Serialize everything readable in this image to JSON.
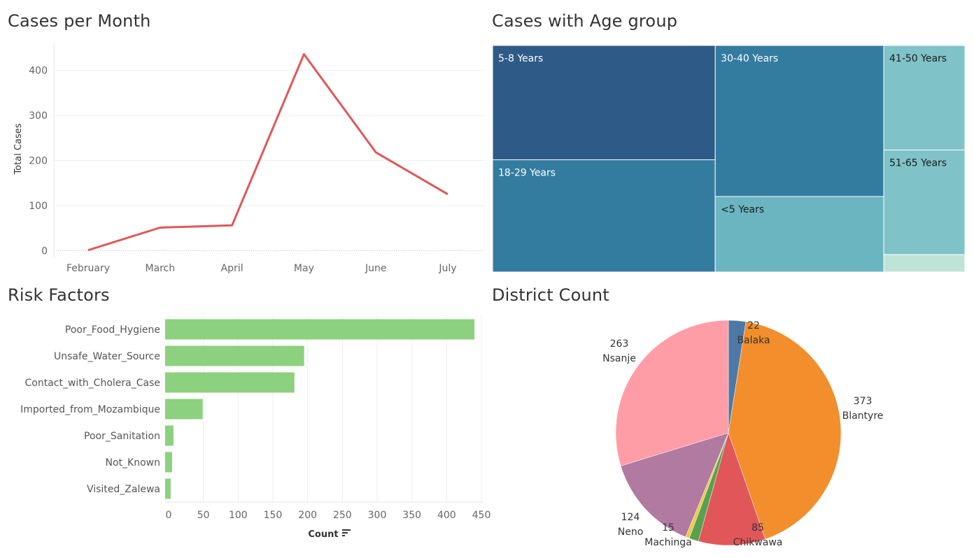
{
  "panels": {
    "line_title": "Cases per Month",
    "treemap_title": "Cases with Age group",
    "bar_title": "Risk Factors",
    "pie_title": "District Count"
  },
  "chart_data": [
    {
      "type": "line",
      "title": "Cases per Month",
      "xlabel": "",
      "ylabel": "Total Cases",
      "categories": [
        "February",
        "March",
        "April",
        "May",
        "June",
        "July"
      ],
      "values": [
        1,
        51,
        56,
        436,
        218,
        125
      ],
      "ylim": [
        -15,
        460
      ],
      "yticks": [
        0,
        100,
        200,
        300,
        400
      ],
      "color": "#E05759",
      "grid": true
    },
    {
      "type": "treemap",
      "title": "Cases with Age group",
      "labels": [
        "5-8 Years",
        "18-29 Years",
        "30-40 Years",
        "<5 Years",
        "41-50 Years",
        "51-65 Years",
        ""
      ],
      "values": [
        216,
        212,
        216,
        108,
        72,
        72,
        12
      ],
      "colors": [
        "#2E5A87",
        "#347BA0",
        "#347BA0",
        "#6BB5C1",
        "#7FC3C9",
        "#7FC3C9",
        "#BFE4D7"
      ],
      "label_colors": [
        "#ffffff",
        "#ffffff",
        "#ffffff",
        "#1a1a1a",
        "#1a1a1a",
        "#1a1a1a",
        "#1a1a1a"
      ]
    },
    {
      "type": "bar",
      "orientation": "horizontal",
      "title": "Risk Factors",
      "xlabel": "Count",
      "ylabel": "",
      "categories": [
        "Poor_Food_Hygiene",
        "Unsafe_Water_Source",
        "Contact_with_Cholera_Case",
        "Imported_from_Mozambique",
        "Poor_Sanitation",
        "Not_Known",
        "Visited_Zalewa"
      ],
      "values": [
        440,
        195,
        181,
        49,
        7,
        5,
        3
      ],
      "xlim": [
        -5,
        452
      ],
      "xticks": [
        0,
        50,
        100,
        150,
        200,
        250,
        300,
        350,
        400,
        450
      ],
      "color": "#8CD17D",
      "grid": true
    },
    {
      "type": "pie",
      "title": "District Count",
      "categories": [
        "Balaka",
        "Blantyre",
        "Chikwawa",
        "Machinga",
        "Neno",
        "Nsanje"
      ],
      "values": [
        22,
        373,
        85,
        15,
        124,
        263
      ],
      "extra_slices": [
        {
          "value": 12,
          "color": "#59A14F"
        },
        {
          "value": 5,
          "color": "#EDC948"
        }
      ],
      "colors": [
        "#4E79A7",
        "#F28E2B",
        "#E15759",
        "#B07AA1",
        "#B07AA1",
        "#FF9DA7"
      ],
      "label_text": [
        {
          "value": "22",
          "name": "Balaka"
        },
        {
          "value": "373",
          "name": "Blantyre"
        },
        {
          "value": "85",
          "name": "Chikwawa"
        },
        {
          "value": "15",
          "name": "Machinga"
        },
        {
          "value": "124",
          "name": "Neno"
        },
        {
          "value": "263",
          "name": "Nsanje"
        }
      ]
    }
  ]
}
